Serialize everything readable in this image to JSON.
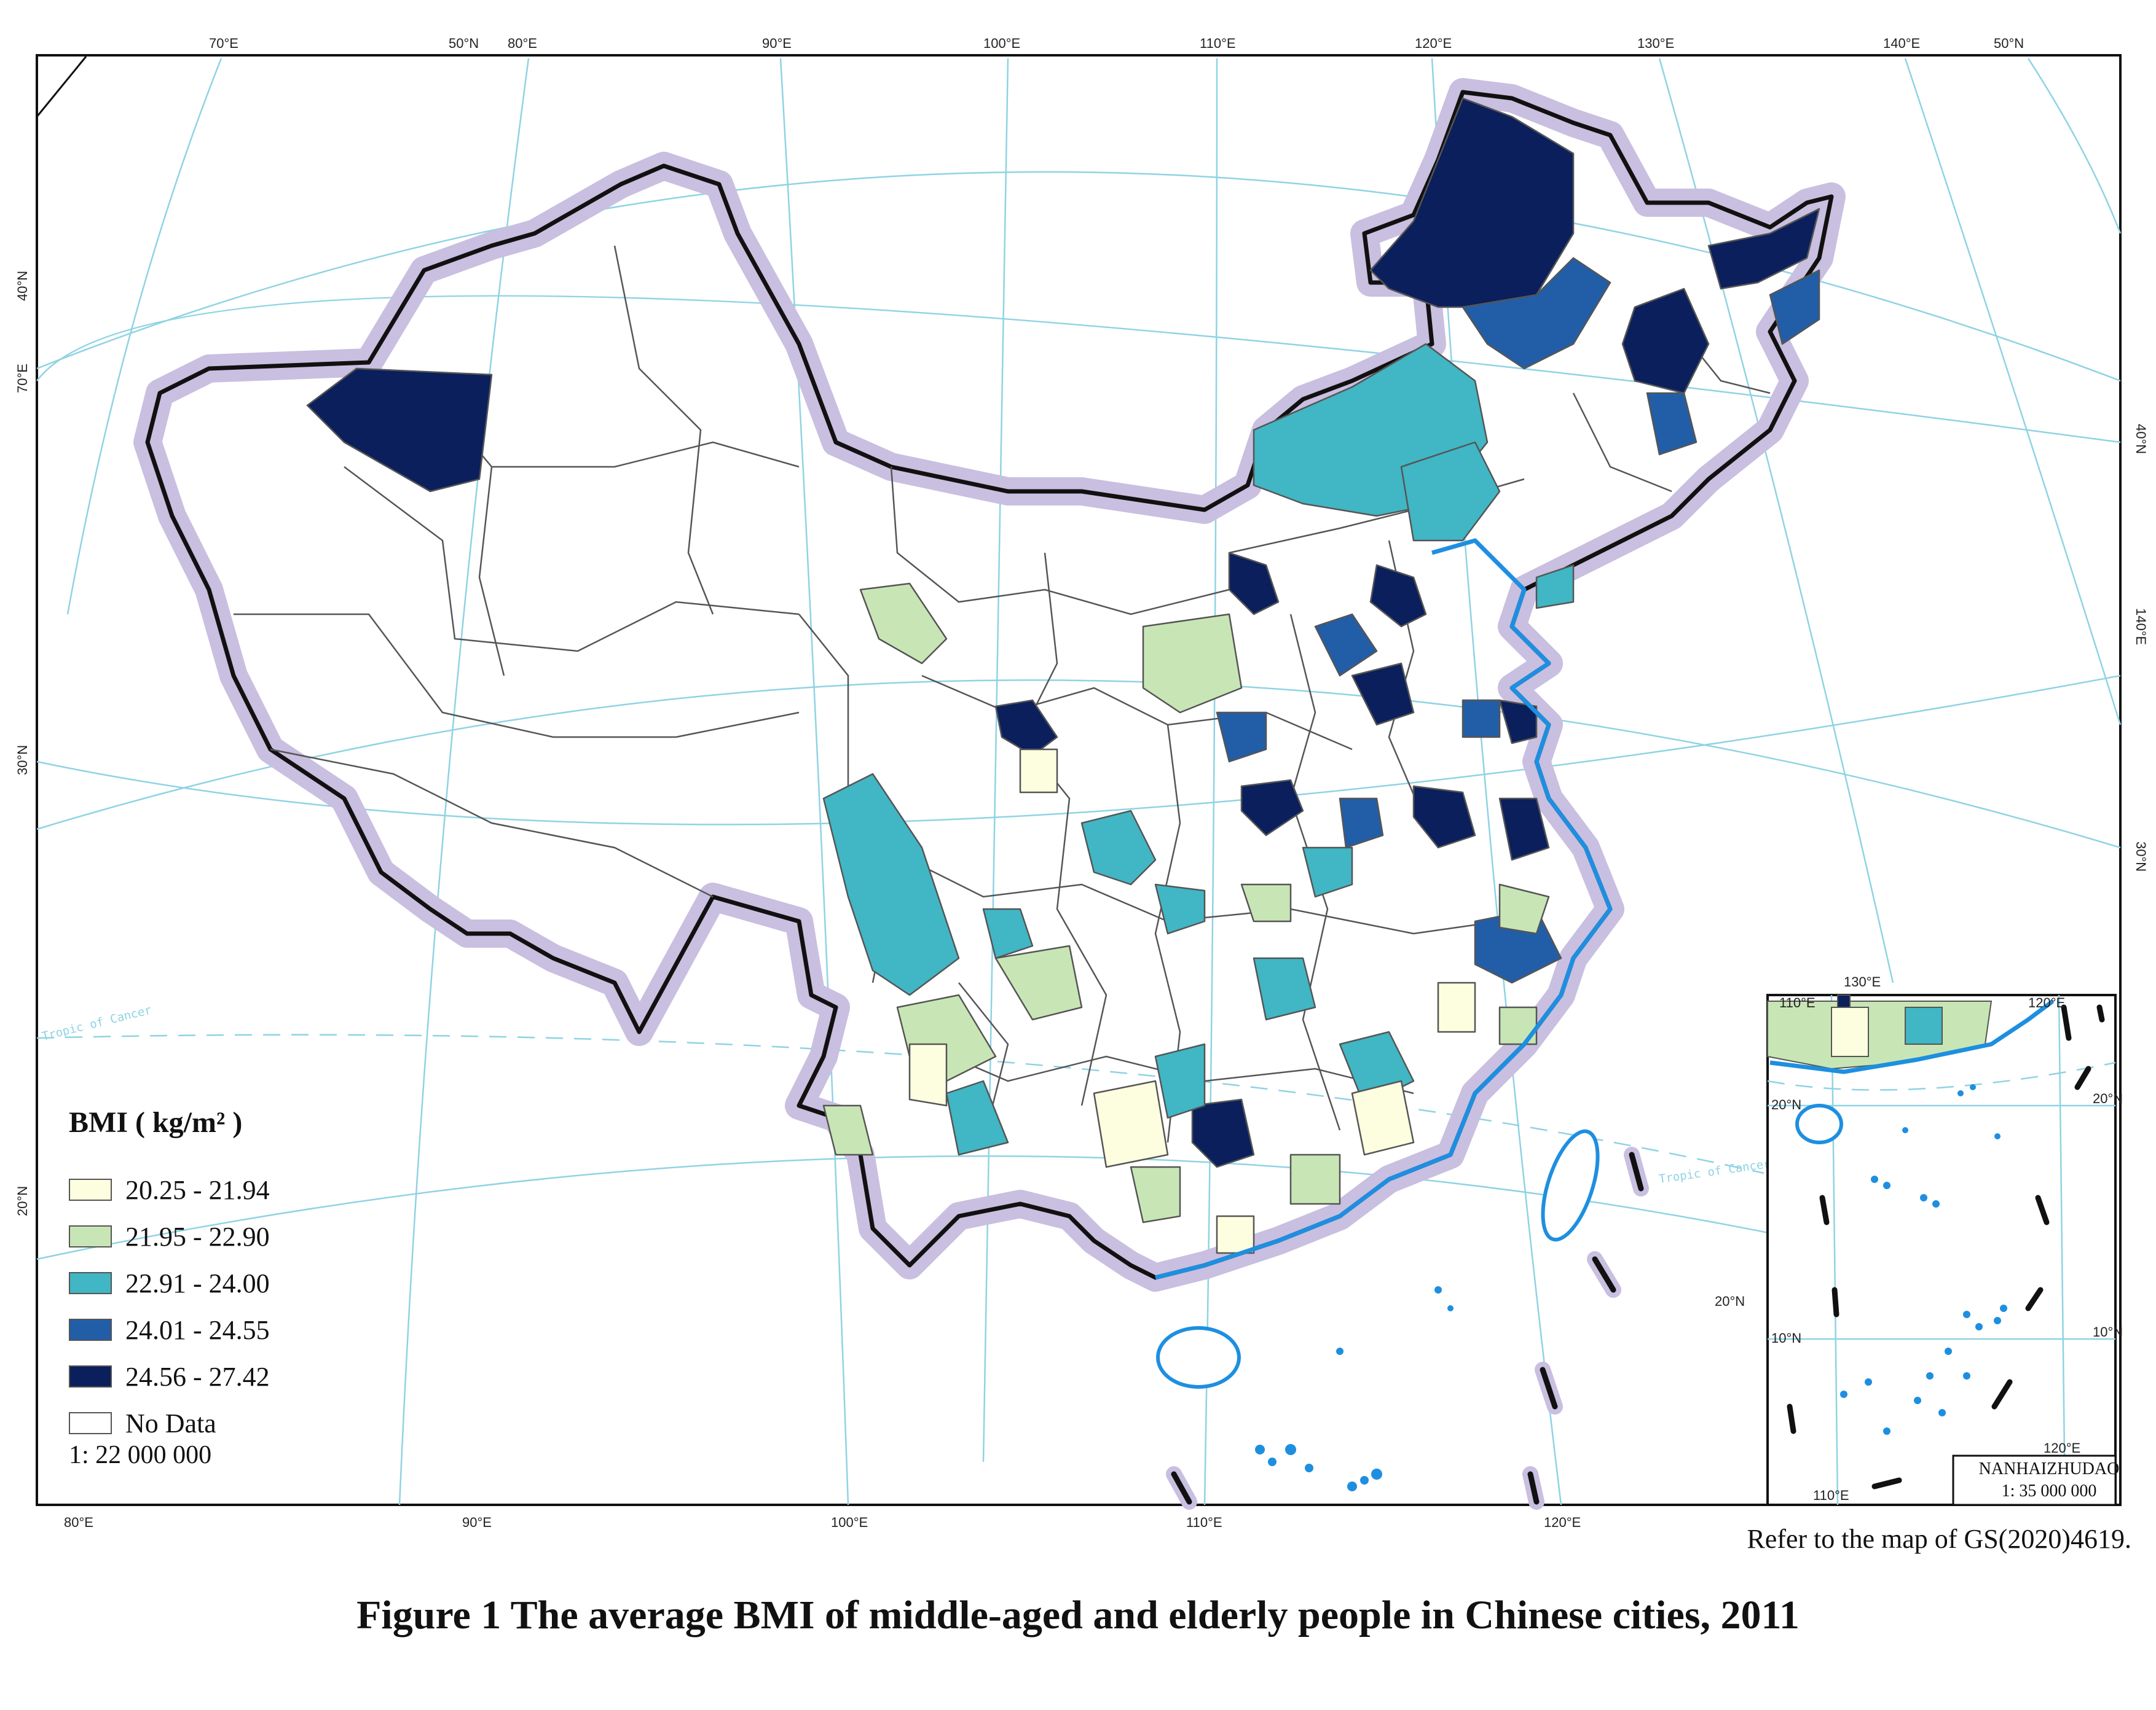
{
  "title": "Figure 1  The average BMI of middle-aged and elderly people in Chinese cities, 2011",
  "source_note": "Refer to the map of GS(2020)4619.",
  "legend": {
    "title": "BMI ( kg/m² )",
    "classes": [
      {
        "label": "20.25 - 21.94",
        "color": "#fdfde0"
      },
      {
        "label": "21.95 - 22.90",
        "color": "#c8e6b5"
      },
      {
        "label": "22.91 - 24.00",
        "color": "#41b6c4"
      },
      {
        "label": "24.01 - 24.55",
        "color": "#225ea8"
      },
      {
        "label": "24.56 - 27.42",
        "color": "#0a1f5c"
      },
      {
        "label": "No Data",
        "color": "#ffffff"
      }
    ],
    "scale": "1: 22 000 000"
  },
  "graticule": {
    "top": [
      "70°E",
      "50°N",
      "80°E",
      "90°E",
      "100°E",
      "110°E",
      "120°E",
      "130°E",
      "140°E",
      "50°N"
    ],
    "bottom": [
      "80°E",
      "90°E",
      "100°E",
      "110°E",
      "120°E"
    ],
    "left": [
      "40°N",
      "70°E",
      "30°N",
      "20°N"
    ],
    "right": [
      "40°N",
      "140°E",
      "30°N"
    ],
    "tropic_label": "Tropic of Cancer",
    "inner_20n": "20°N"
  },
  "inset": {
    "name": "NANHAIZHUDAO",
    "scale": "1: 35 000 000",
    "labels": {
      "top": "130°E",
      "tl": "110°E",
      "tr": "120°E",
      "lat20_left": "20°N",
      "lat20_right": "20°N",
      "lat10_left": "10°N",
      "lat10_right": "10°N",
      "bottom_lon": "110°E",
      "bottom_lon2": "120°E"
    }
  }
}
